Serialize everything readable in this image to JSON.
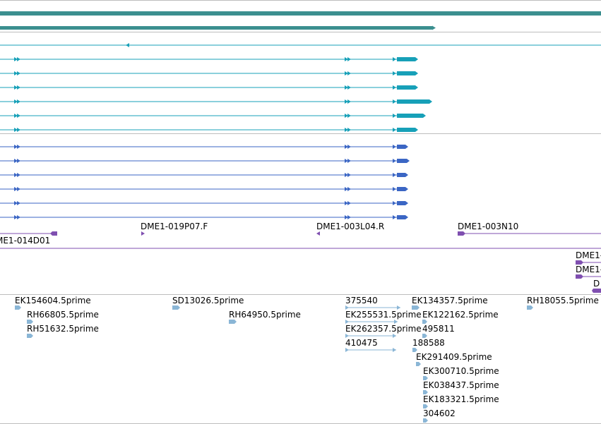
{
  "colors": {
    "gene": "#3b8f8f",
    "transcript_a": "#17a0b8",
    "transcript_b": "#3b66c4",
    "clone": "#7f4fb0",
    "clone_separator": "#7f4fb0",
    "est": "#8ab6d6",
    "separator": "#bdbdbd"
  },
  "clones": {
    "labels": [
      "ME1-014D01",
      "DME1-019P07.F",
      "DME1-003L04.R",
      "DME1-003N10",
      "DME1-",
      "DME1-",
      "D"
    ]
  },
  "ests": {
    "labels": [
      "EK154604.5prime",
      "RH66805.5prime",
      "RH51632.5prime",
      "SD13026.5prime",
      "RH64950.5prime",
      "375540",
      "EK255531.5prime",
      "EK262357.5prime",
      "410475",
      "EK134357.5prime",
      "EK122162.5prime",
      "495811",
      "188588",
      "EK291409.5prime",
      "EK300710.5prime",
      "EK038437.5prime",
      "EK183321.5prime",
      "304602",
      "RH18055.5prime"
    ]
  }
}
